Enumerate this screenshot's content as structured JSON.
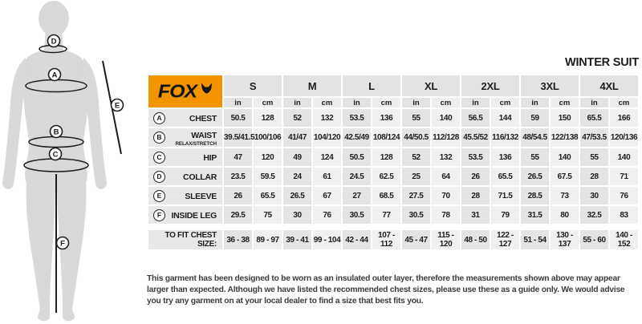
{
  "title": "WINTER SUIT",
  "brand": {
    "name": "FOX",
    "logo_color": "#f29400"
  },
  "figure": {
    "chest_label": "A",
    "waist_label": "B",
    "hip_label": "C",
    "collar_label": "D",
    "sleeve_label": "E",
    "inside_leg_label": "F"
  },
  "table": {
    "sizes": [
      "S",
      "M",
      "L",
      "XL",
      "2XL",
      "3XL",
      "4XL"
    ],
    "units": [
      "in",
      "cm"
    ],
    "rows": [
      {
        "letter": "A",
        "label": "CHEST",
        "sublabel": "",
        "values": [
          [
            "50.5",
            "128"
          ],
          [
            "52",
            "132"
          ],
          [
            "53.5",
            "136"
          ],
          [
            "55",
            "140"
          ],
          [
            "56.5",
            "144"
          ],
          [
            "59",
            "150"
          ],
          [
            "65.5",
            "166"
          ]
        ]
      },
      {
        "letter": "B",
        "label": "WAIST",
        "sublabel": "RELAX/STRETCH",
        "values": [
          [
            "39.5/41.5",
            "100/106"
          ],
          [
            "41/47",
            "104/120"
          ],
          [
            "42.5/49",
            "108/124"
          ],
          [
            "44/50.5",
            "112/128"
          ],
          [
            "45.5/52",
            "116/132"
          ],
          [
            "48/54.5",
            "122/138"
          ],
          [
            "47/53.5",
            "120/136"
          ]
        ]
      },
      {
        "letter": "C",
        "label": "HIP",
        "sublabel": "",
        "values": [
          [
            "47",
            "120"
          ],
          [
            "49",
            "124"
          ],
          [
            "50.5",
            "128"
          ],
          [
            "52",
            "132"
          ],
          [
            "53.5",
            "136"
          ],
          [
            "55",
            "140"
          ],
          [
            "55",
            "140"
          ]
        ]
      },
      {
        "letter": "D",
        "label": "COLLAR",
        "sublabel": "",
        "values": [
          [
            "23.5",
            "59.5"
          ],
          [
            "24",
            "61"
          ],
          [
            "24.5",
            "62.5"
          ],
          [
            "25",
            "64"
          ],
          [
            "26",
            "65.5"
          ],
          [
            "26.5",
            "67.5"
          ],
          [
            "28",
            "71"
          ]
        ]
      },
      {
        "letter": "E",
        "label": "SLEEVE",
        "sublabel": "",
        "values": [
          [
            "26",
            "65.5"
          ],
          [
            "26.5",
            "67"
          ],
          [
            "27",
            "68.5"
          ],
          [
            "27.5",
            "70"
          ],
          [
            "28",
            "71.5"
          ],
          [
            "28.5",
            "73"
          ],
          [
            "30",
            "76"
          ]
        ]
      },
      {
        "letter": "F",
        "label": "INSIDE LEG",
        "sublabel": "",
        "values": [
          [
            "29.5",
            "75"
          ],
          [
            "30",
            "76"
          ],
          [
            "30.5",
            "77"
          ],
          [
            "30.5",
            "78"
          ],
          [
            "31",
            "79"
          ],
          [
            "31.5",
            "80"
          ],
          [
            "32.5",
            "83"
          ]
        ]
      }
    ],
    "fit_row": {
      "label": "TO FIT CHEST SIZE:",
      "values": [
        [
          "36 - 38",
          "89 - 97"
        ],
        [
          "39 - 41",
          "99 - 104"
        ],
        [
          "42 - 44",
          "107 - 112"
        ],
        [
          "45 - 47",
          "115 - 120"
        ],
        [
          "48 - 50",
          "122 - 127"
        ],
        [
          "51 - 54",
          "130 - 137"
        ],
        [
          "55 - 60",
          "140 - 152"
        ]
      ]
    }
  },
  "footer": "This garment has been designed to be worn as an insulated outer layer, therefore the measurements shown above may appear larger than expected. Although we have listed the recommended chest sizes, please use these as a guide only. We would advise you try any garment on at your local dealer to find a size that best fits you.",
  "colors": {
    "accent_orange": "#f29400",
    "cell_dark": "#e4e4e4",
    "cell_light": "#f0f0f0",
    "silhouette": "#d9d9d9",
    "text": "#1d1d1b"
  }
}
